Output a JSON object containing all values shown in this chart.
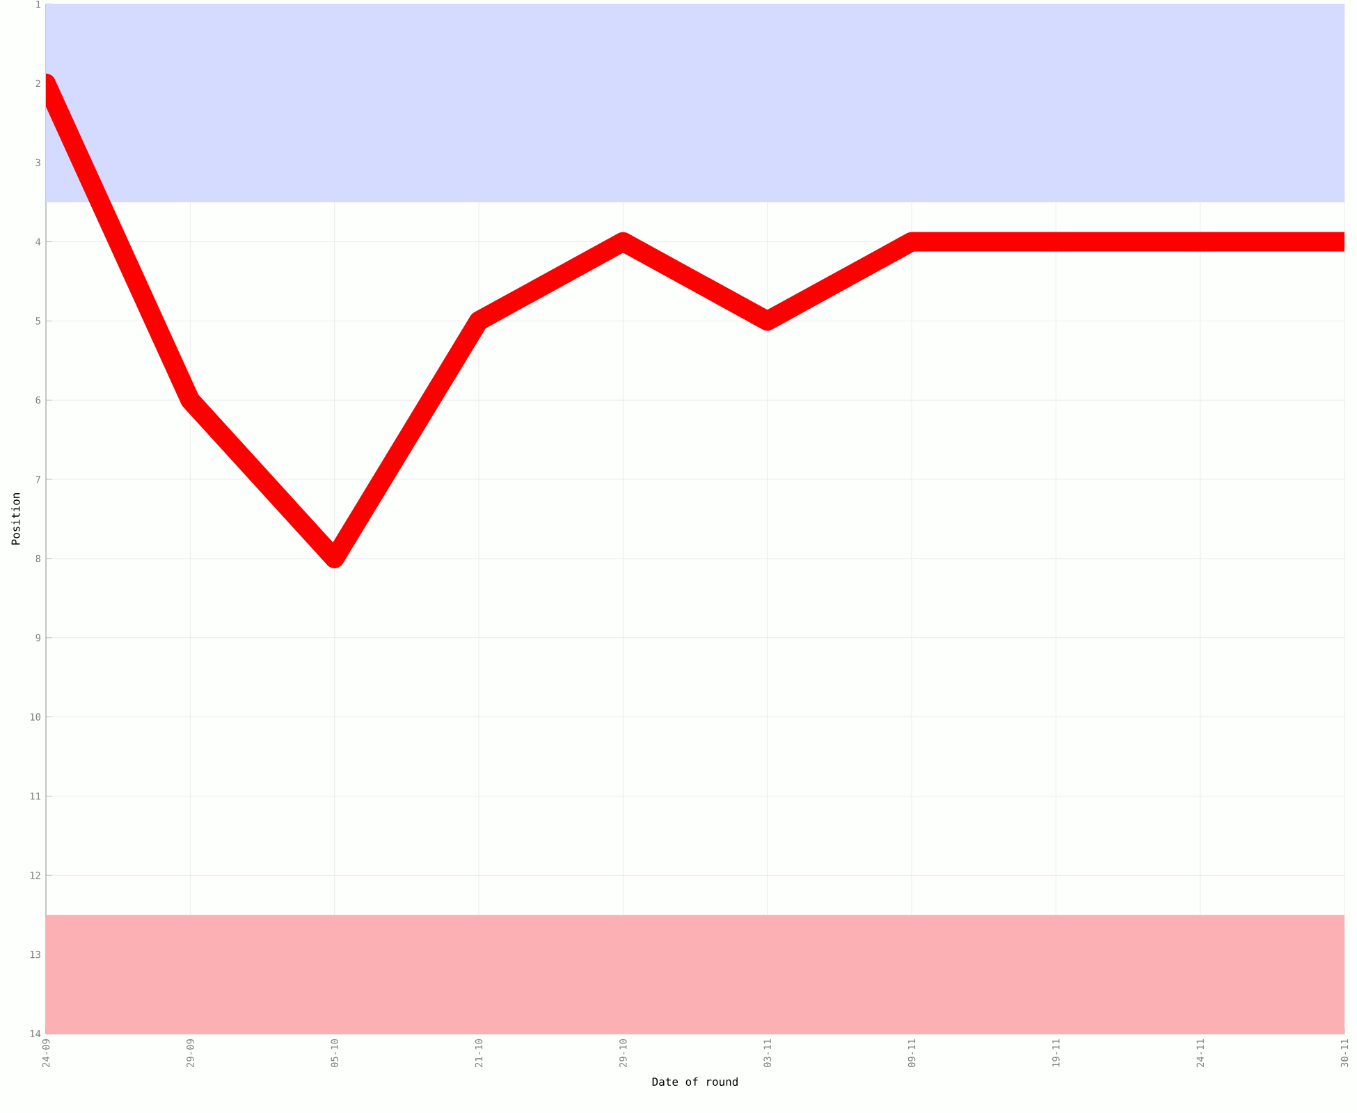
{
  "chart_data": {
    "type": "line",
    "xlabel": "Date of round",
    "ylabel": "Position",
    "categories": [
      "24-09",
      "29-09",
      "05-10",
      "21-10",
      "29-10",
      "03-11",
      "09-11",
      "19-11",
      "24-11",
      "30-11"
    ],
    "series": [
      {
        "color": "#ff0000",
        "values": [
          2,
          6,
          8,
          5,
          4,
          5,
          4,
          4,
          4,
          4
        ]
      }
    ],
    "ylim": [
      14,
      1
    ],
    "yticks": [
      1,
      2,
      3,
      4,
      5,
      6,
      7,
      8,
      9,
      10,
      11,
      12,
      13,
      14
    ],
    "bands": [
      {
        "axis": "y",
        "from": 1,
        "to": 3.5,
        "color": "#d5daff"
      },
      {
        "axis": "y",
        "from": 12.5,
        "to": 14,
        "color": "#fbb0b4"
      }
    ],
    "grid": true,
    "marker": "none",
    "line_style": "solid"
  }
}
